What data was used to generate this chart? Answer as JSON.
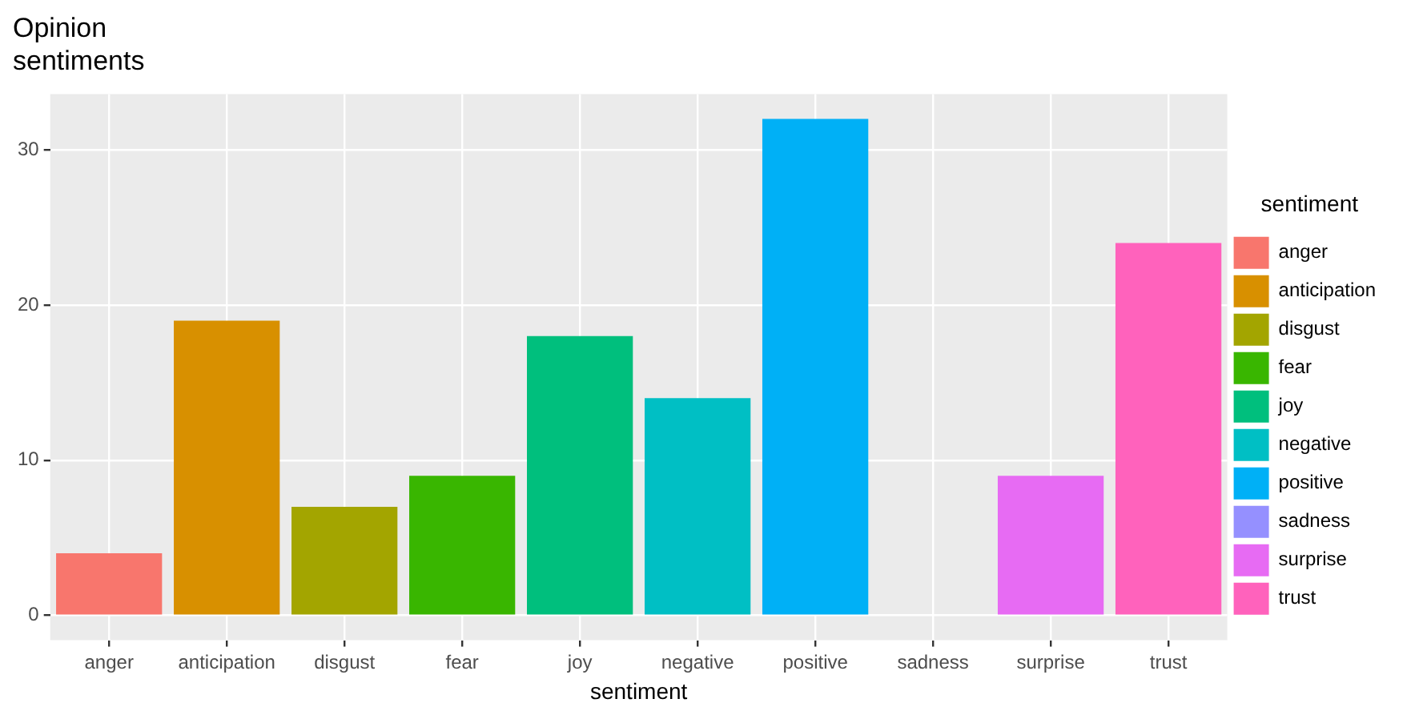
{
  "chart_data": {
    "type": "bar",
    "title": "Opinion",
    "subtitle": "sentiments",
    "xlabel": "sentiment",
    "legend_title": "sentiment",
    "categories": [
      "anger",
      "anticipation",
      "disgust",
      "fear",
      "joy",
      "negative",
      "positive",
      "sadness",
      "surprise",
      "trust"
    ],
    "series": [
      {
        "name": "anger",
        "color": "#f8766d",
        "values": [
          4,
          null,
          null,
          null,
          null,
          null,
          null,
          null,
          null,
          null
        ]
      },
      {
        "name": "anticipation",
        "color": "#d89000",
        "values": [
          null,
          19,
          null,
          null,
          null,
          null,
          null,
          null,
          null,
          null
        ]
      },
      {
        "name": "disgust",
        "color": "#a3a500",
        "values": [
          null,
          null,
          7,
          null,
          null,
          null,
          null,
          null,
          null,
          null
        ]
      },
      {
        "name": "fear",
        "color": "#39b600",
        "values": [
          null,
          null,
          null,
          9,
          null,
          null,
          null,
          null,
          null,
          null
        ]
      },
      {
        "name": "joy",
        "color": "#00bf7d",
        "values": [
          null,
          null,
          null,
          null,
          18,
          null,
          null,
          null,
          null,
          null
        ]
      },
      {
        "name": "negative",
        "color": "#00bfc4",
        "values": [
          null,
          null,
          null,
          null,
          null,
          14,
          null,
          null,
          null,
          null
        ]
      },
      {
        "name": "positive",
        "color": "#00b0f6",
        "values": [
          null,
          null,
          null,
          null,
          null,
          null,
          32,
          null,
          null,
          null
        ]
      },
      {
        "name": "sadness",
        "color": "#9590ff",
        "values": [
          null,
          null,
          null,
          null,
          null,
          null,
          null,
          0,
          null,
          null
        ]
      },
      {
        "name": "surprise",
        "color": "#e76bf3",
        "values": [
          null,
          null,
          null,
          null,
          null,
          null,
          null,
          null,
          9,
          null
        ]
      },
      {
        "name": "trust",
        "color": "#ff62bc",
        "values": [
          null,
          null,
          null,
          null,
          null,
          null,
          null,
          null,
          null,
          24
        ]
      }
    ],
    "ylim": [
      -1.6,
      33.6
    ],
    "yticks": [
      0,
      10,
      20,
      30
    ],
    "grid": true,
    "legend": "right"
  }
}
